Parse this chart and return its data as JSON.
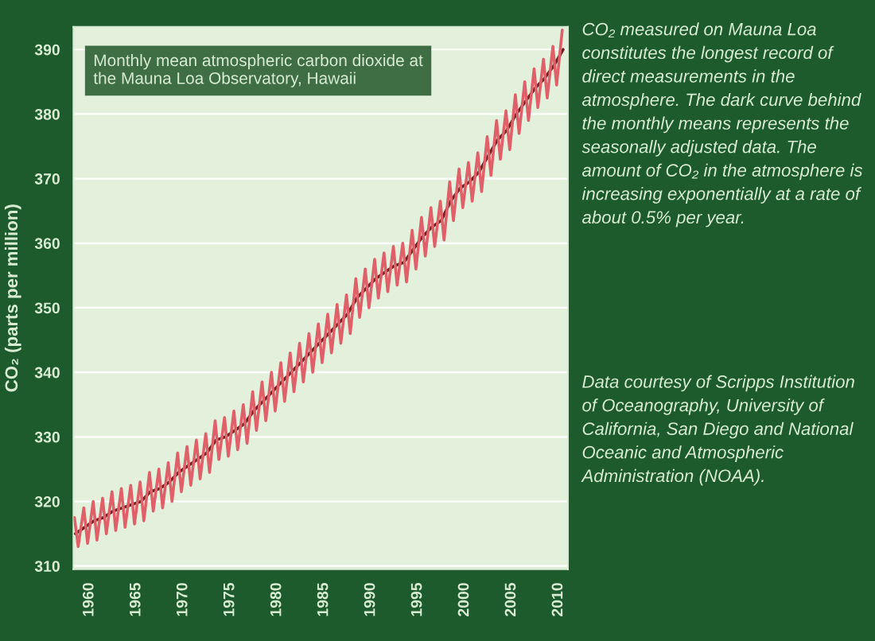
{
  "chart_data": {
    "type": "line",
    "ylabel": "CO₂ (parts per million)",
    "xlim": [
      1958.3,
      2011
    ],
    "ylim": [
      309.5,
      393.5
    ],
    "xticks": [
      1960,
      1965,
      1970,
      1975,
      1980,
      1985,
      1990,
      1995,
      2000,
      2005,
      2010
    ],
    "yticks": [
      310,
      320,
      330,
      340,
      350,
      360,
      370,
      380,
      390
    ],
    "grid": "y",
    "marker": "none",
    "line_style": "solid",
    "series": [
      {
        "color": "#6e1e1e",
        "x": [
          1958.5,
          1959.5,
          1960.5,
          1961.5,
          1962.5,
          1963.5,
          1964.5,
          1965.5,
          1966.5,
          1967.5,
          1968.5,
          1969.5,
          1970.5,
          1971.5,
          1972.5,
          1973.5,
          1974.5,
          1975.5,
          1976.5,
          1977.5,
          1978.5,
          1979.5,
          1980.5,
          1981.5,
          1982.5,
          1983.5,
          1984.5,
          1985.5,
          1986.5,
          1987.5,
          1988.5,
          1989.5,
          1990.5,
          1991.5,
          1992.5,
          1993.5,
          1994.5,
          1995.5,
          1996.5,
          1997.5,
          1998.5,
          1999.5,
          2000.5,
          2001.5,
          2002.5,
          2003.5,
          2004.5,
          2005.5,
          2006.5,
          2007.5,
          2008.5,
          2009.5,
          2010.5
        ],
        "values": [
          315,
          316,
          317,
          317.5,
          318.5,
          319,
          319.5,
          320,
          321.5,
          322,
          323,
          324.5,
          325.5,
          326.5,
          327.5,
          329.5,
          330,
          331,
          332,
          334,
          335.5,
          337,
          338.5,
          340,
          341.5,
          343,
          344.5,
          346,
          347.5,
          349,
          351.5,
          353,
          354.5,
          355.5,
          356.5,
          357,
          359,
          361,
          362.5,
          363.5,
          366.5,
          368.5,
          369.5,
          371,
          373.5,
          376,
          377.5,
          380,
          382,
          384,
          385.5,
          387.5,
          390
        ]
      },
      {
        "color": "#e0606a",
        "x": [
          1958.4,
          1958.8,
          1959.4,
          1959.8,
          1960.4,
          1960.8,
          1961.4,
          1961.8,
          1962.4,
          1962.8,
          1963.4,
          1963.8,
          1964.4,
          1964.8,
          1965.4,
          1965.8,
          1966.4,
          1966.8,
          1967.4,
          1967.8,
          1968.4,
          1968.8,
          1969.4,
          1969.8,
          1970.4,
          1970.8,
          1971.4,
          1971.8,
          1972.4,
          1972.8,
          1973.4,
          1973.8,
          1974.4,
          1974.8,
          1975.4,
          1975.8,
          1976.4,
          1976.8,
          1977.4,
          1977.8,
          1978.4,
          1978.8,
          1979.4,
          1979.8,
          1980.4,
          1980.8,
          1981.4,
          1981.8,
          1982.4,
          1982.8,
          1983.4,
          1983.8,
          1984.4,
          1984.8,
          1985.4,
          1985.8,
          1986.4,
          1986.8,
          1987.4,
          1987.8,
          1988.4,
          1988.8,
          1989.4,
          1989.8,
          1990.4,
          1990.8,
          1991.4,
          1991.8,
          1992.4,
          1992.8,
          1993.4,
          1993.8,
          1994.4,
          1994.8,
          1995.4,
          1995.8,
          1996.4,
          1996.8,
          1997.4,
          1997.8,
          1998.4,
          1998.8,
          1999.4,
          1999.8,
          2000.4,
          2000.8,
          2001.4,
          2001.8,
          2002.4,
          2002.8,
          2003.4,
          2003.8,
          2004.4,
          2004.8,
          2005.4,
          2005.8,
          2006.4,
          2006.8,
          2007.4,
          2007.8,
          2008.4,
          2008.8,
          2009.4,
          2009.8,
          2010.4
        ],
        "values": [
          317.5,
          313,
          319,
          313.5,
          320,
          314,
          320.5,
          315,
          321.5,
          315.5,
          322,
          316,
          322.5,
          316.5,
          323,
          317,
          324.5,
          318.5,
          325,
          319,
          326,
          320,
          327.5,
          321.5,
          328.5,
          322.5,
          329.5,
          323.5,
          330.5,
          324.5,
          332.5,
          326.5,
          333,
          327,
          334,
          328,
          335,
          329,
          337,
          331,
          338.5,
          332.5,
          340,
          334,
          341.5,
          335.5,
          343,
          337,
          344.5,
          338.5,
          346,
          340,
          347.5,
          341.5,
          349,
          343,
          350.5,
          344.5,
          352,
          346,
          354.5,
          348.5,
          356,
          350,
          357.5,
          351.5,
          358.5,
          352.5,
          359.5,
          353.5,
          360,
          354,
          362,
          356,
          364,
          358,
          365.5,
          359.5,
          366.5,
          360.5,
          369.5,
          363.5,
          371.5,
          365.5,
          372.5,
          366.5,
          374,
          368,
          376.5,
          370.5,
          379,
          373,
          380.5,
          374.5,
          383,
          377,
          385,
          379,
          387,
          381,
          388.5,
          382.5,
          390.5,
          384.5,
          393
        ]
      }
    ],
    "annotations": [
      "Monthly mean atmospheric carbon dioxide at the Mauna Loa Observatory, Hawaii",
      "CO₂ measured on Mauna Loa constitutes the longest record of direct measurements in the atmosphere. The dark curve behind the monthly means represents the seasonally adjusted data. The amount of CO₂ in the atmosphere is increasing exponentially at a rate of about 0.5% per year.",
      "Data courtesy of Scripps Institution of Oceanography, University of California, San Diego and National Oceanic and Atmospheric Administration (NOAA)."
    ]
  }
}
